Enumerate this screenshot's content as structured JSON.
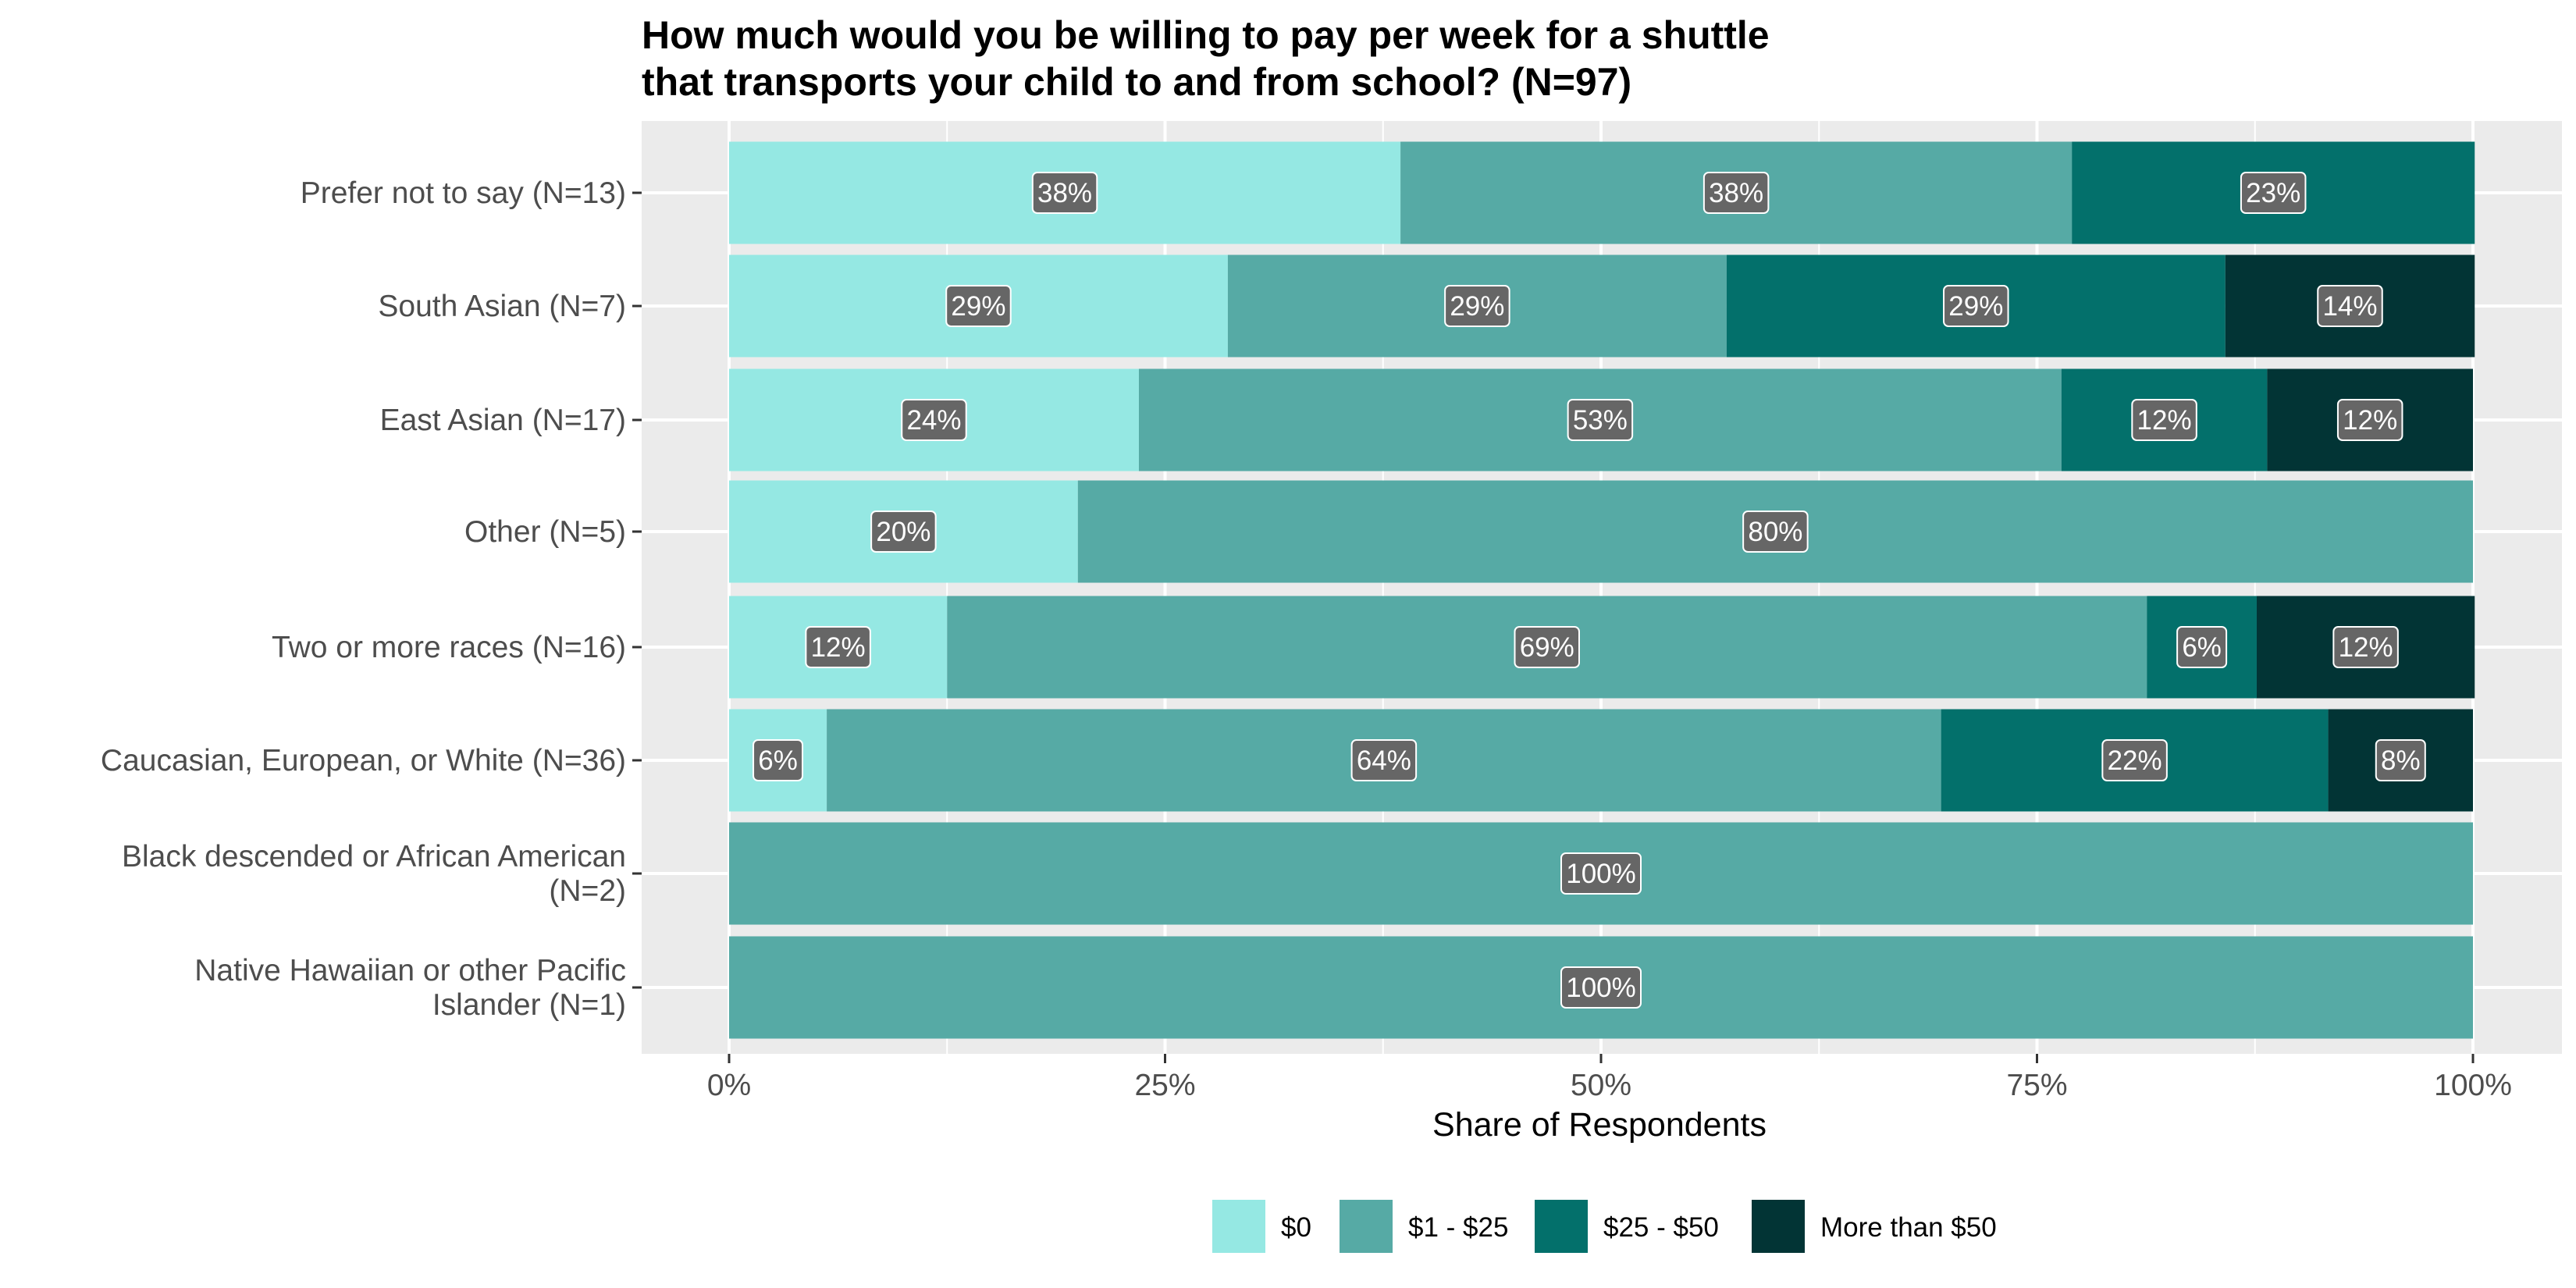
{
  "chart_data": {
    "type": "bar",
    "orientation": "horizontal",
    "stacked": "percent",
    "title": [
      "How much would you be willing to pay per week for a shuttle",
      "that transports your child to and from school? (N=97)"
    ],
    "xlabel": "Share of Respondents",
    "ylabel": "",
    "xlim": [
      0,
      1
    ],
    "x_ticks": [
      "0%",
      "25%",
      "50%",
      "75%",
      "100%"
    ],
    "grid": true,
    "legend_position": "bottom",
    "categories": [
      [
        "Prefer not to say (N=13)"
      ],
      [
        "South Asian (N=7)"
      ],
      [
        "East Asian (N=17)"
      ],
      [
        "Other (N=5)"
      ],
      [
        "Two or more races (N=16)"
      ],
      [
        "Caucasian, European, or White (N=36)"
      ],
      [
        "Black descended or African American",
        "(N=2)"
      ],
      [
        "Native Hawaiian or other Pacific",
        "Islander (N=1)"
      ]
    ],
    "series": [
      {
        "name": "$0",
        "color": "#95e8e3",
        "values": [
          0.385,
          0.286,
          0.235,
          0.2,
          0.125,
          0.056,
          0,
          0
        ],
        "labels": [
          "38%",
          "29%",
          "24%",
          "20%",
          "12%",
          "6%",
          "",
          ""
        ]
      },
      {
        "name": "$1 - $25",
        "color": "#56aaa5",
        "values": [
          0.385,
          0.286,
          0.529,
          0.8,
          0.688,
          0.639,
          1.0,
          1.0
        ],
        "labels": [
          "38%",
          "29%",
          "53%",
          "80%",
          "69%",
          "64%",
          "100%",
          "100%"
        ]
      },
      {
        "name": "$25 - $50",
        "color": "#03706b",
        "values": [
          0.231,
          0.286,
          0.118,
          0,
          0.063,
          0.222,
          0,
          0
        ],
        "labels": [
          "23%",
          "29%",
          "12%",
          "",
          "6%",
          "22%",
          "",
          ""
        ]
      },
      {
        "name": "More than $50",
        "color": "#023435",
        "values": [
          0,
          0.143,
          0.118,
          0,
          0.125,
          0.083,
          0,
          0
        ],
        "labels": [
          "",
          "14%",
          "12%",
          "",
          "12%",
          "8%",
          "",
          ""
        ]
      }
    ]
  }
}
